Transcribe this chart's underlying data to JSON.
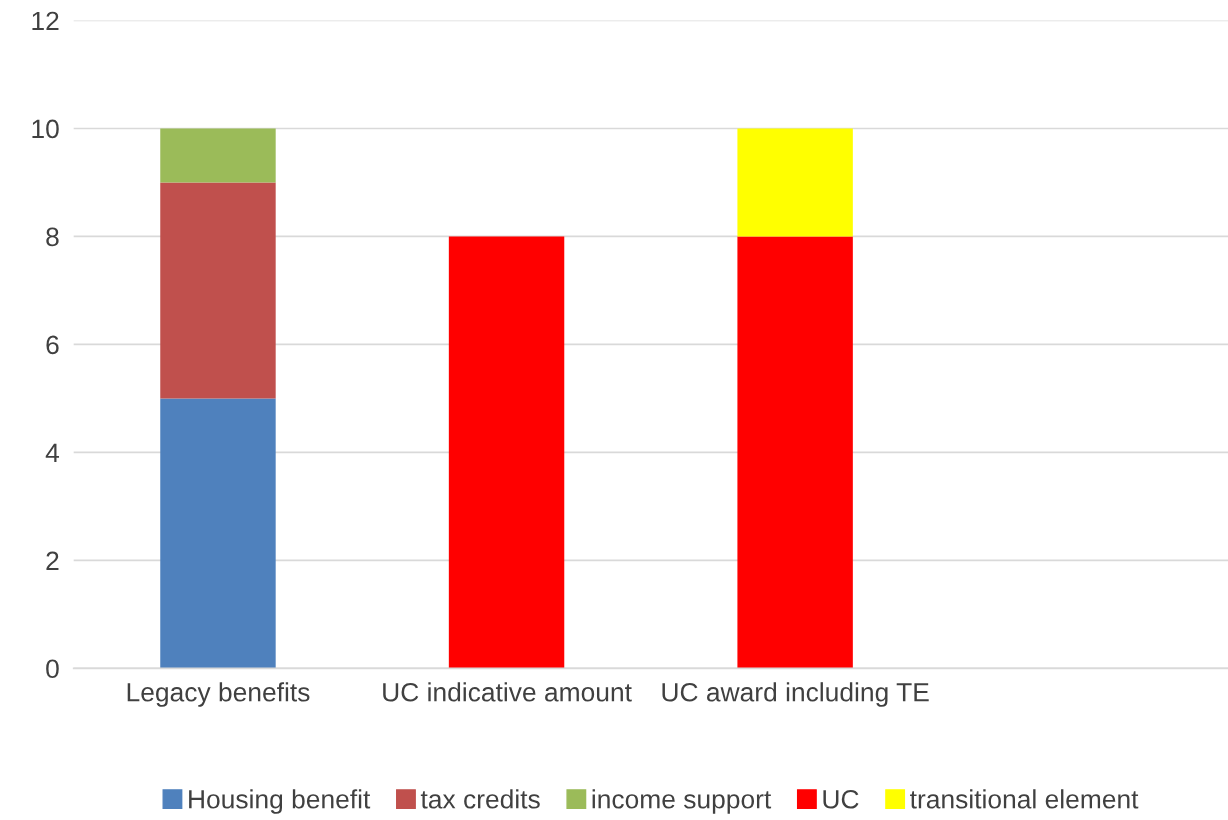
{
  "chart_data": {
    "type": "bar",
    "stacked": true,
    "categories": [
      "Legacy benefits",
      "UC indicative amount",
      "UC award including TE",
      null
    ],
    "series": [
      {
        "name": "Housing benefit",
        "color": "#4f81bd",
        "values": [
          5,
          null,
          null,
          null
        ]
      },
      {
        "name": "tax credits",
        "color": "#c0504d",
        "values": [
          4,
          null,
          null,
          null
        ]
      },
      {
        "name": "income support",
        "color": "#9bbb59",
        "values": [
          1,
          null,
          null,
          null
        ]
      },
      {
        "name": "UC",
        "color": "#ff0000",
        "values": [
          null,
          8,
          8,
          null
        ]
      },
      {
        "name": "transitional element",
        "color": "#ffff00",
        "values": [
          null,
          null,
          2,
          null
        ]
      }
    ],
    "ylim": [
      0,
      12
    ],
    "yticks": [
      0,
      2,
      4,
      6,
      8,
      10,
      12
    ],
    "grid": "y",
    "legend": "bottom"
  }
}
